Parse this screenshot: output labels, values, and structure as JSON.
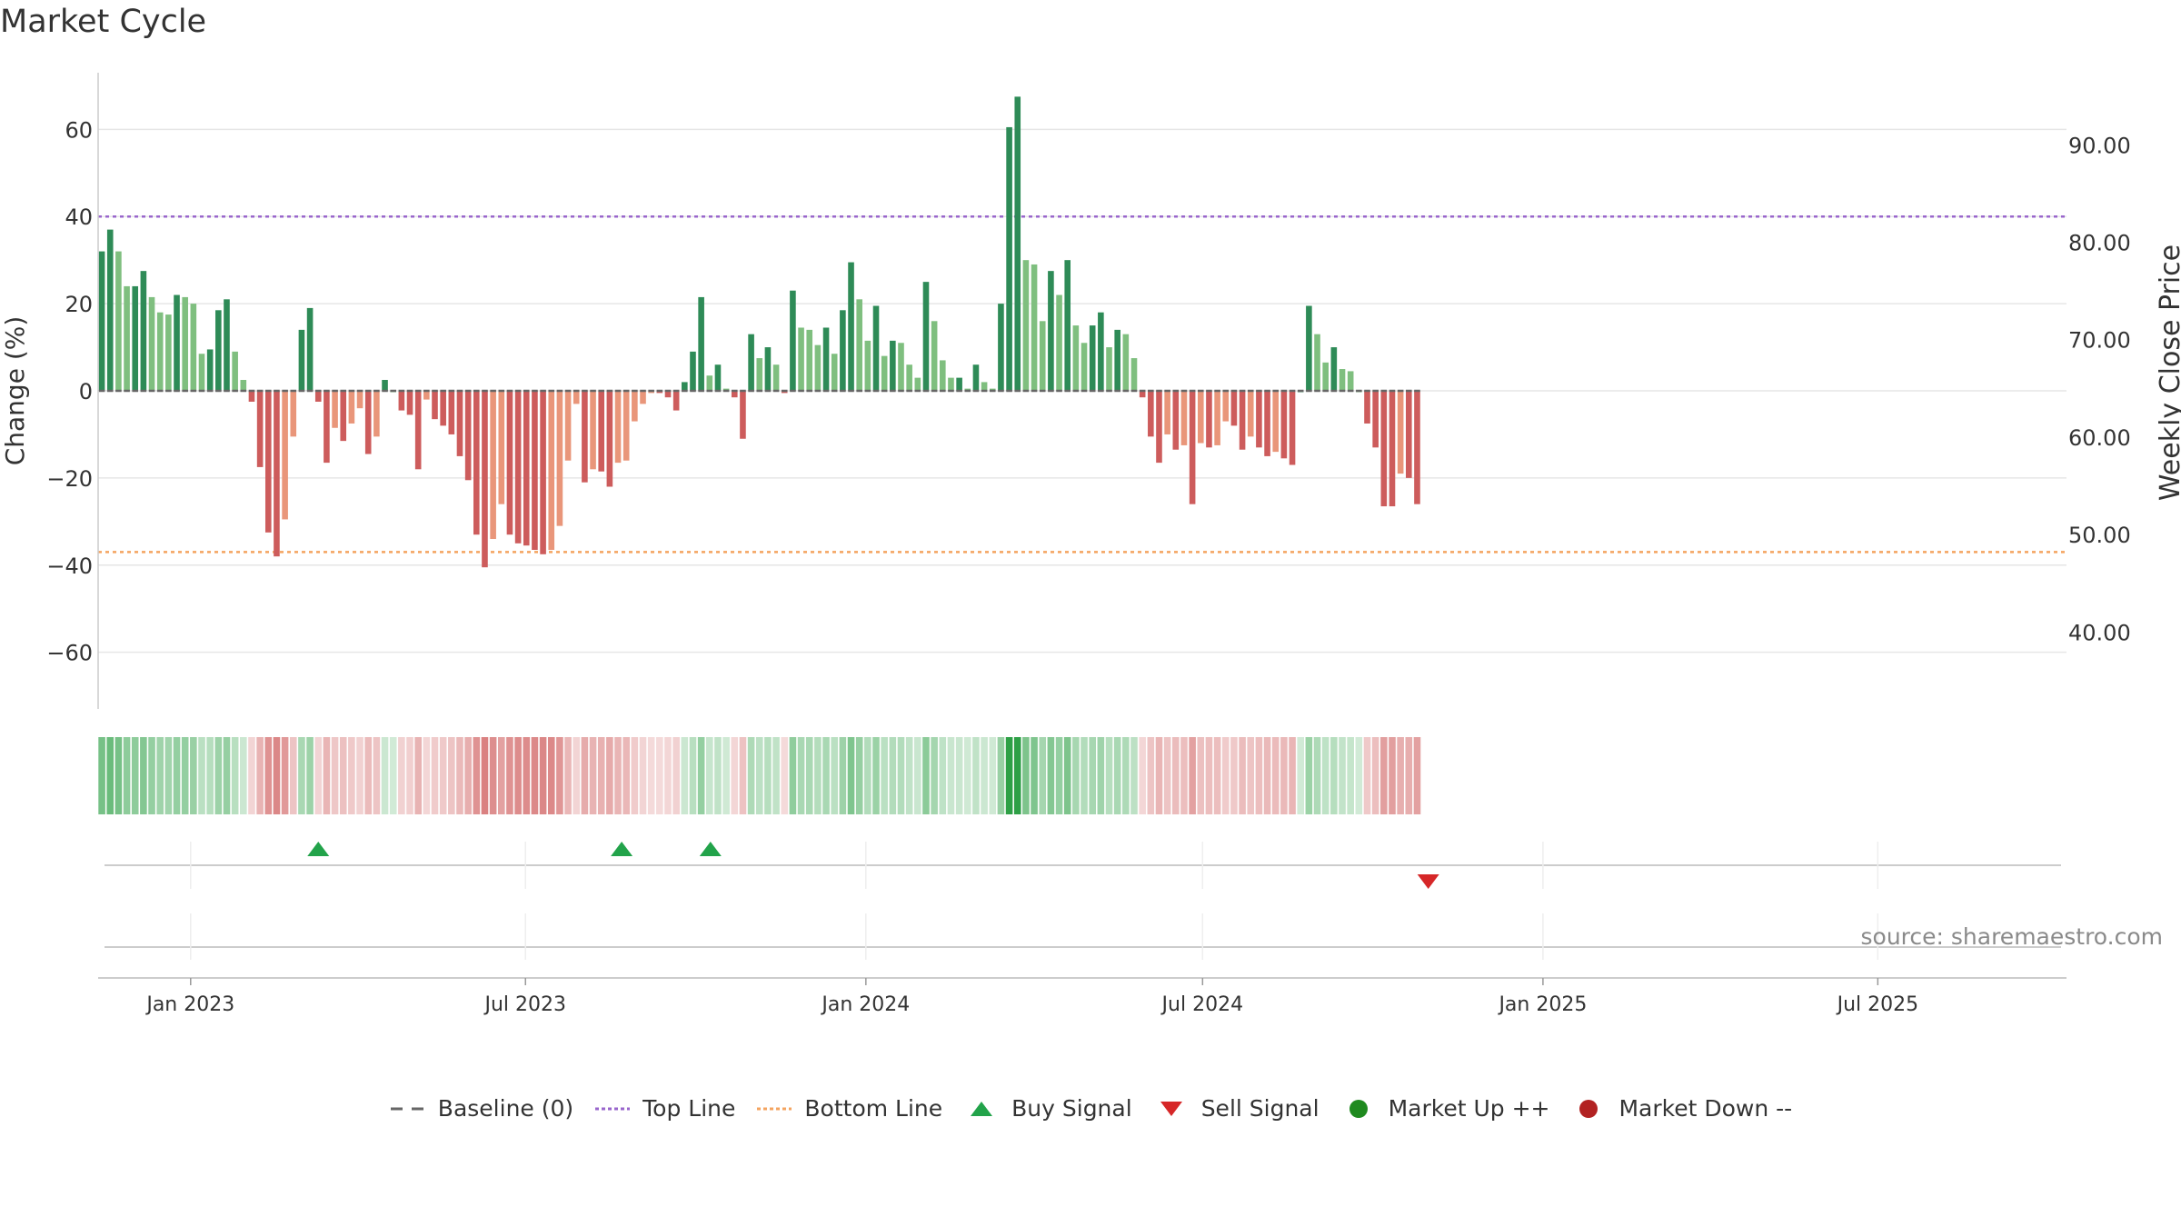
{
  "title": "Market Cycle",
  "source": "source: sharemaestro.com",
  "colors": {
    "up_dark": "#2e8b57",
    "up_light": "#7fbf7f",
    "down_dark": "#cd5c5c",
    "down_light": "#e9967a",
    "top_line": "#9966cc",
    "bottom_line": "#f4a460",
    "buy": "#22a34a",
    "sell": "#d62728",
    "market_up": "#1f8a1f",
    "market_down": "#b22222",
    "baseline": "#666666",
    "grid": "#e6e6e6"
  },
  "legend": [
    {
      "label": "Baseline (0)",
      "icon": "dash-line",
      "color": "#666666"
    },
    {
      "label": "Top Line",
      "icon": "dotted-line",
      "color": "#9966cc"
    },
    {
      "label": "Bottom Line",
      "icon": "dotted-line",
      "color": "#f4a460"
    },
    {
      "label": "Buy Signal",
      "icon": "triangle-up",
      "color": "#22a34a"
    },
    {
      "label": "Sell Signal",
      "icon": "triangle-down",
      "color": "#d62728"
    },
    {
      "label": "Market Up ++",
      "icon": "circle",
      "color": "#1f8a1f"
    },
    {
      "label": "Market Down --",
      "icon": "circle",
      "color": "#b22222"
    }
  ],
  "chart_data": {
    "type": "bar",
    "title": "Market Cycle",
    "ylabel": "Change (%)",
    "y2label": "Weekly Close Price",
    "ylim": [
      -73,
      73
    ],
    "y_ticks": [
      60,
      40,
      20,
      0,
      -20,
      -40,
      -60
    ],
    "y_tick_labels": [
      "60",
      "40",
      "20",
      "0",
      "−20",
      "−40",
      "−60"
    ],
    "y2lim": [
      32.1,
      97.4
    ],
    "y2_ticks": [
      90,
      80,
      70,
      60,
      50,
      40
    ],
    "y2_tick_labels": [
      "90.00",
      "80.00",
      "70.00",
      "60.00",
      "50.00",
      "40.00"
    ],
    "top_line": 40,
    "bottom_line": -37,
    "xlim": [
      "2022-11-12",
      "2025-10-11"
    ],
    "x_ticks": [
      "2023-01-01",
      "2023-07-01",
      "2024-01-01",
      "2024-07-01",
      "2025-01-01",
      "2025-07-01"
    ],
    "x_tick_labels": [
      "Jan 2023",
      "Jul 2023",
      "Jan 2024",
      "Jul 2024",
      "Jan 2025",
      "Jul 2025"
    ],
    "grid": true,
    "legend_position": "bottom",
    "series": [
      {
        "start": "2022-11-14",
        "interval_days": 4.5,
        "values": [
          32,
          37,
          32,
          24,
          24,
          27.5,
          21.5,
          18,
          17.5,
          22,
          21.5,
          20,
          8.5,
          9.5,
          18.5,
          21,
          9,
          2.5,
          -2.5,
          -17.5,
          -32.5,
          -38,
          -29.5,
          -10.5,
          14,
          19,
          -2.5,
          -16.5,
          -8.5,
          -11.5,
          -7.5,
          -4,
          -14.5,
          -10.5,
          2.5,
          0,
          -4.5,
          -5.5,
          -18,
          -2,
          -6.5,
          -8,
          -10,
          -15,
          -20.5,
          -33,
          -40.5,
          -34,
          -26,
          -33,
          -35,
          -35.5,
          -36.5,
          -37.5,
          -36.5,
          -31,
          -16,
          -3,
          -21,
          -18,
          -18.5,
          -22,
          -16.5,
          -16,
          -7,
          -3,
          -0.5,
          -0.5,
          -1.5,
          -4.5,
          2,
          9,
          21.5,
          3.5,
          6,
          0.5,
          -1.5,
          -11,
          13,
          7.5,
          10,
          6,
          -0.5,
          23,
          14.5,
          14,
          10.5,
          14.5,
          8.5,
          18.5,
          29.5,
          21,
          11.5,
          19.5,
          8,
          11.5,
          11,
          6,
          3,
          25,
          16,
          7,
          3,
          3,
          0.5,
          6,
          2,
          0.5,
          20,
          60.5,
          67.5,
          30,
          29,
          16,
          27.5,
          22,
          30,
          15,
          11,
          15,
          18,
          10,
          14,
          13,
          7.5,
          -1.5,
          -10.5,
          -16.5,
          -10,
          -13.5,
          -12.5,
          -26,
          -12,
          -13,
          -12.5,
          -7,
          -8,
          -13.5,
          -10.5,
          -13,
          -15,
          -14,
          -15.5,
          -17,
          0,
          19.5,
          13,
          6.5,
          10,
          5,
          4.5,
          0,
          -7.5,
          -13,
          -26.5,
          -26.5,
          -19,
          -20,
          -26
        ]
      }
    ],
    "signals": [
      {
        "type": "buy",
        "date": "2023-03-11"
      },
      {
        "type": "buy",
        "date": "2023-08-22"
      },
      {
        "type": "buy",
        "date": "2023-10-09"
      },
      {
        "type": "sell",
        "date": "2024-10-31"
      }
    ]
  }
}
